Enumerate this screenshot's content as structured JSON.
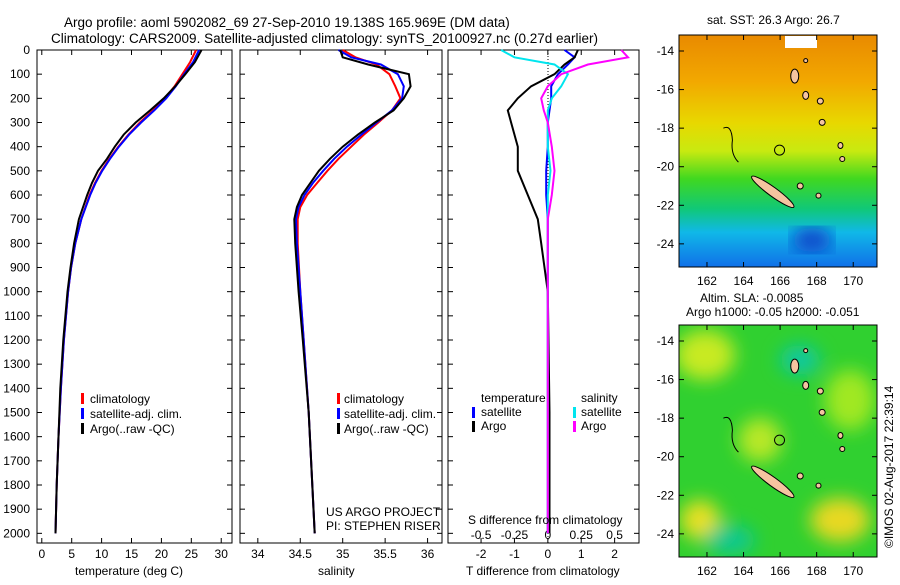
{
  "title": {
    "line1": "Argo profile: aoml 5902082_69 27-Sep-2010 19.138S 165.969E (DM data)",
    "line2": "Climatology: CARS2009. Satellite-adjusted climatology: synTS_20100927.nc (0.27d earlier)"
  },
  "credit": "©IMOS 02-Aug-2017 22:39:14",
  "colors": {
    "climatology": "#ff0000",
    "satellite": "#0000ff",
    "argo": "#000000",
    "s_satellite": "#00e5ee",
    "s_argo": "#ff00ff"
  },
  "chart_data": [
    {
      "type": "line",
      "xlabel": "temperature (deg C)",
      "ylabel": "",
      "xlim": [
        -0.8,
        31.8
      ],
      "ylim": [
        2040,
        0
      ],
      "xticks": [
        0,
        5,
        10,
        15,
        20,
        25,
        30
      ],
      "yticks": [
        0,
        100,
        200,
        300,
        400,
        500,
        600,
        700,
        800,
        900,
        1000,
        1100,
        1200,
        1300,
        1400,
        1500,
        1600,
        1700,
        1800,
        1900,
        2000
      ],
      "legend": [
        "climatology",
        "satellite-adj. clim.",
        "Argo(..raw -QC)"
      ],
      "depth": [
        0,
        50,
        100,
        150,
        200,
        250,
        300,
        350,
        400,
        450,
        500,
        550,
        600,
        700,
        800,
        900,
        1000,
        1200,
        1400,
        1600,
        1800,
        2000
      ],
      "series": [
        {
          "name": "climatology",
          "values": [
            25.8,
            24.8,
            23.5,
            22.2,
            20.6,
            18.6,
            16.4,
            14.5,
            12.8,
            11.3,
            10.0,
            8.9,
            8.0,
            6.6,
            5.6,
            4.9,
            4.4,
            3.7,
            3.2,
            2.8,
            2.5,
            2.3
          ]
        },
        {
          "name": "satellite-adj. clim.",
          "values": [
            26.3,
            25.3,
            23.8,
            22.4,
            20.8,
            18.8,
            16.6,
            14.6,
            12.9,
            11.4,
            10.1,
            9.0,
            8.1,
            6.6,
            5.6,
            4.9,
            4.4,
            3.7,
            3.2,
            2.8,
            2.5,
            2.3
          ]
        },
        {
          "name": "Argo(..raw -QC)",
          "values": [
            26.7,
            25.6,
            24.0,
            22.3,
            20.4,
            18.1,
            15.7,
            13.7,
            12.2,
            10.9,
            9.4,
            8.4,
            7.6,
            6.2,
            5.4,
            4.8,
            4.3,
            3.6,
            3.1,
            2.8,
            2.5,
            2.3
          ]
        }
      ]
    },
    {
      "type": "line",
      "xlabel": "salinity",
      "xlim": [
        33.79,
        36.17
      ],
      "ylim": [
        2040,
        0
      ],
      "xticks": [
        34,
        34.5,
        35,
        35.5,
        36
      ],
      "legend": [
        "climatology",
        "satellite-adj. clim.",
        "Argo(..raw -QC)"
      ],
      "annotation": [
        "US ARGO PROJECT",
        "PI: STEPHEN RISER"
      ],
      "depth": [
        0,
        30,
        60,
        100,
        150,
        200,
        250,
        300,
        350,
        400,
        450,
        500,
        550,
        600,
        650,
        700,
        800,
        1000,
        1200,
        1500,
        2000
      ],
      "series": [
        {
          "name": "climatology",
          "values": [
            35.0,
            35.15,
            35.4,
            35.55,
            35.62,
            35.68,
            35.58,
            35.42,
            35.25,
            35.1,
            34.95,
            34.82,
            34.7,
            34.58,
            34.5,
            34.47,
            34.47,
            34.5,
            34.54,
            34.6,
            34.67
          ]
        },
        {
          "name": "satellite-adj. clim.",
          "values": [
            34.95,
            35.1,
            35.45,
            35.65,
            35.72,
            35.7,
            35.58,
            35.4,
            35.22,
            35.05,
            34.9,
            34.77,
            34.65,
            34.55,
            34.48,
            34.45,
            34.46,
            34.5,
            34.54,
            34.6,
            34.67
          ]
        },
        {
          "name": "Argo(..raw -QC)",
          "values": [
            34.97,
            35.0,
            35.3,
            35.78,
            35.8,
            35.72,
            35.6,
            35.38,
            35.18,
            35.0,
            34.85,
            34.72,
            34.62,
            34.52,
            34.46,
            34.43,
            34.44,
            34.48,
            34.53,
            34.6,
            34.67
          ]
        }
      ]
    },
    {
      "type": "line",
      "xlabel": "T difference from climatology",
      "xlabel2": "S difference from climatology",
      "xlim": [
        -2.99,
        2.73
      ],
      "ylim": [
        2040,
        0
      ],
      "xticks": [
        -2,
        -1,
        0,
        1,
        2
      ],
      "xticks2": [
        -0.5,
        -0.25,
        0,
        0.25,
        0.5
      ],
      "legend_titles": [
        "temperature",
        "salinity"
      ],
      "legend": [
        "satellite",
        "Argo",
        "satellite",
        "Argo"
      ],
      "depth": [
        0,
        30,
        60,
        100,
        150,
        200,
        250,
        300,
        400,
        500,
        600,
        700,
        800,
        900,
        1000,
        1500,
        2000
      ],
      "series": [
        {
          "name": "T satellite",
          "values": [
            0.5,
            0.8,
            0.6,
            0.3,
            0.1,
            0.1,
            0.05,
            0.0,
            0.0,
            -0.05,
            -0.05,
            0.0,
            0.0,
            0.0,
            0.0,
            0.0,
            0.0
          ]
        },
        {
          "name": "T Argo",
          "values": [
            0.9,
            0.8,
            0.5,
            0.2,
            -0.5,
            -0.9,
            -1.2,
            -1.1,
            -0.9,
            -0.9,
            -0.6,
            -0.3,
            -0.2,
            -0.1,
            0.0,
            0.05,
            0.05
          ]
        },
        {
          "name": "S satellite",
          "values": [
            -0.35,
            -0.25,
            0.05,
            0.15,
            0.1,
            0.03,
            0.0,
            0.0,
            0.0,
            0.02,
            0.0,
            0.0,
            0.0,
            0.0,
            0.0,
            0.0,
            0.0
          ]
        },
        {
          "name": "S Argo",
          "values": [
            0.55,
            0.6,
            0.3,
            0.1,
            0.0,
            -0.05,
            -0.03,
            0.0,
            0.03,
            0.05,
            0.03,
            0.0,
            0.0,
            0.0,
            0.0,
            0.0,
            0.0
          ]
        }
      ]
    },
    {
      "type": "heatmap",
      "title": "sat. SST: 26.3 Argo: 26.7",
      "xticks": [
        162,
        164,
        166,
        168,
        170
      ],
      "yticks": [
        -14,
        -16,
        -18,
        -20,
        -22,
        -24
      ],
      "xlim": [
        160.47,
        171.3
      ],
      "ylim": [
        -25.2,
        -13.17
      ],
      "argo_position": [
        165.969,
        -19.138
      ]
    },
    {
      "type": "heatmap",
      "title": "Altim. SLA: -0.0085",
      "subtitle": "Argo h1000: -0.05 h2000: -0.051",
      "xticks": [
        162,
        164,
        166,
        168,
        170
      ],
      "yticks": [
        -14,
        -16,
        -18,
        -20,
        -22,
        -24
      ],
      "xlim": [
        160.47,
        171.3
      ],
      "ylim": [
        -25.2,
        -13.17
      ],
      "argo_position": [
        165.969,
        -19.138
      ]
    }
  ]
}
